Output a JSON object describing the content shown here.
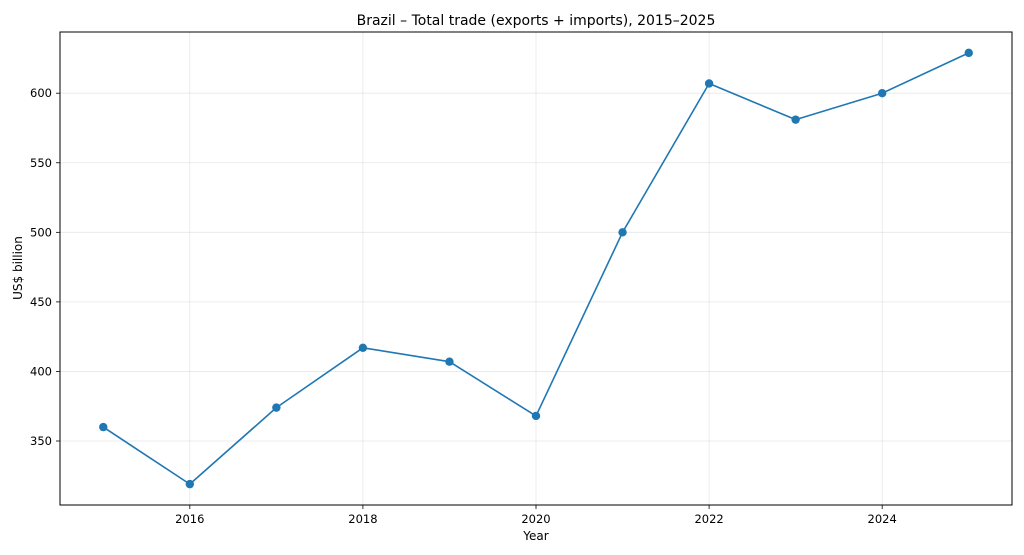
{
  "chart_data": {
    "type": "line",
    "title": "Brazil – Total trade (exports + imports), 2015–2025",
    "xlabel": "Year",
    "ylabel": "US$ billion",
    "x": [
      2015,
      2016,
      2017,
      2018,
      2019,
      2020,
      2021,
      2022,
      2023,
      2024,
      2025
    ],
    "series": [
      {
        "values": [
          360,
          319,
          374,
          417,
          407,
          368,
          500,
          607,
          581,
          600,
          629
        ],
        "color": "#1f77b4"
      }
    ],
    "x_ticks": [
      2016,
      2018,
      2020,
      2022,
      2024
    ],
    "y_ticks": [
      350,
      400,
      450,
      500,
      550,
      600
    ],
    "xlim": [
      2014.5,
      2025.5
    ],
    "ylim": [
      304,
      644
    ],
    "grid": true,
    "marker": "circle"
  }
}
